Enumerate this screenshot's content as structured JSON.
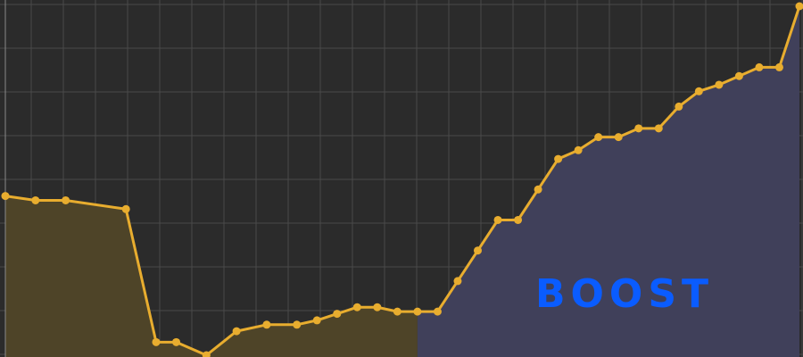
{
  "chart_data": {
    "type": "area",
    "title": "",
    "xlabel": "",
    "ylabel": "",
    "x": [
      0,
      3,
      6,
      12,
      15,
      17,
      20,
      23,
      26,
      29,
      31,
      33,
      35,
      37,
      39,
      41,
      43,
      45,
      47,
      49,
      51,
      53,
      55,
      57,
      59,
      61,
      63,
      65,
      67,
      69,
      71,
      73,
      75,
      77,
      79
    ],
    "values": [
      36.5,
      35.5,
      35.5,
      33.5,
      3,
      3,
      0,
      5.5,
      7,
      7,
      8,
      9.5,
      11,
      11,
      10,
      10,
      10,
      17,
      24,
      31,
      31,
      38,
      45,
      47,
      50,
      50,
      52,
      52,
      57,
      60.5,
      62,
      64,
      66,
      66,
      80
    ],
    "xlim": [
      0,
      79
    ],
    "ylim": [
      0,
      80
    ],
    "grid": true,
    "series_color": "#e8ad2f",
    "regions": [
      {
        "from": 0,
        "to": 41,
        "fill": "#4e4428"
      },
      {
        "from": 41,
        "to": 79,
        "fill": "#40405a"
      }
    ],
    "annotation": {
      "text": "BOOST",
      "color": "#0a5cff"
    }
  }
}
